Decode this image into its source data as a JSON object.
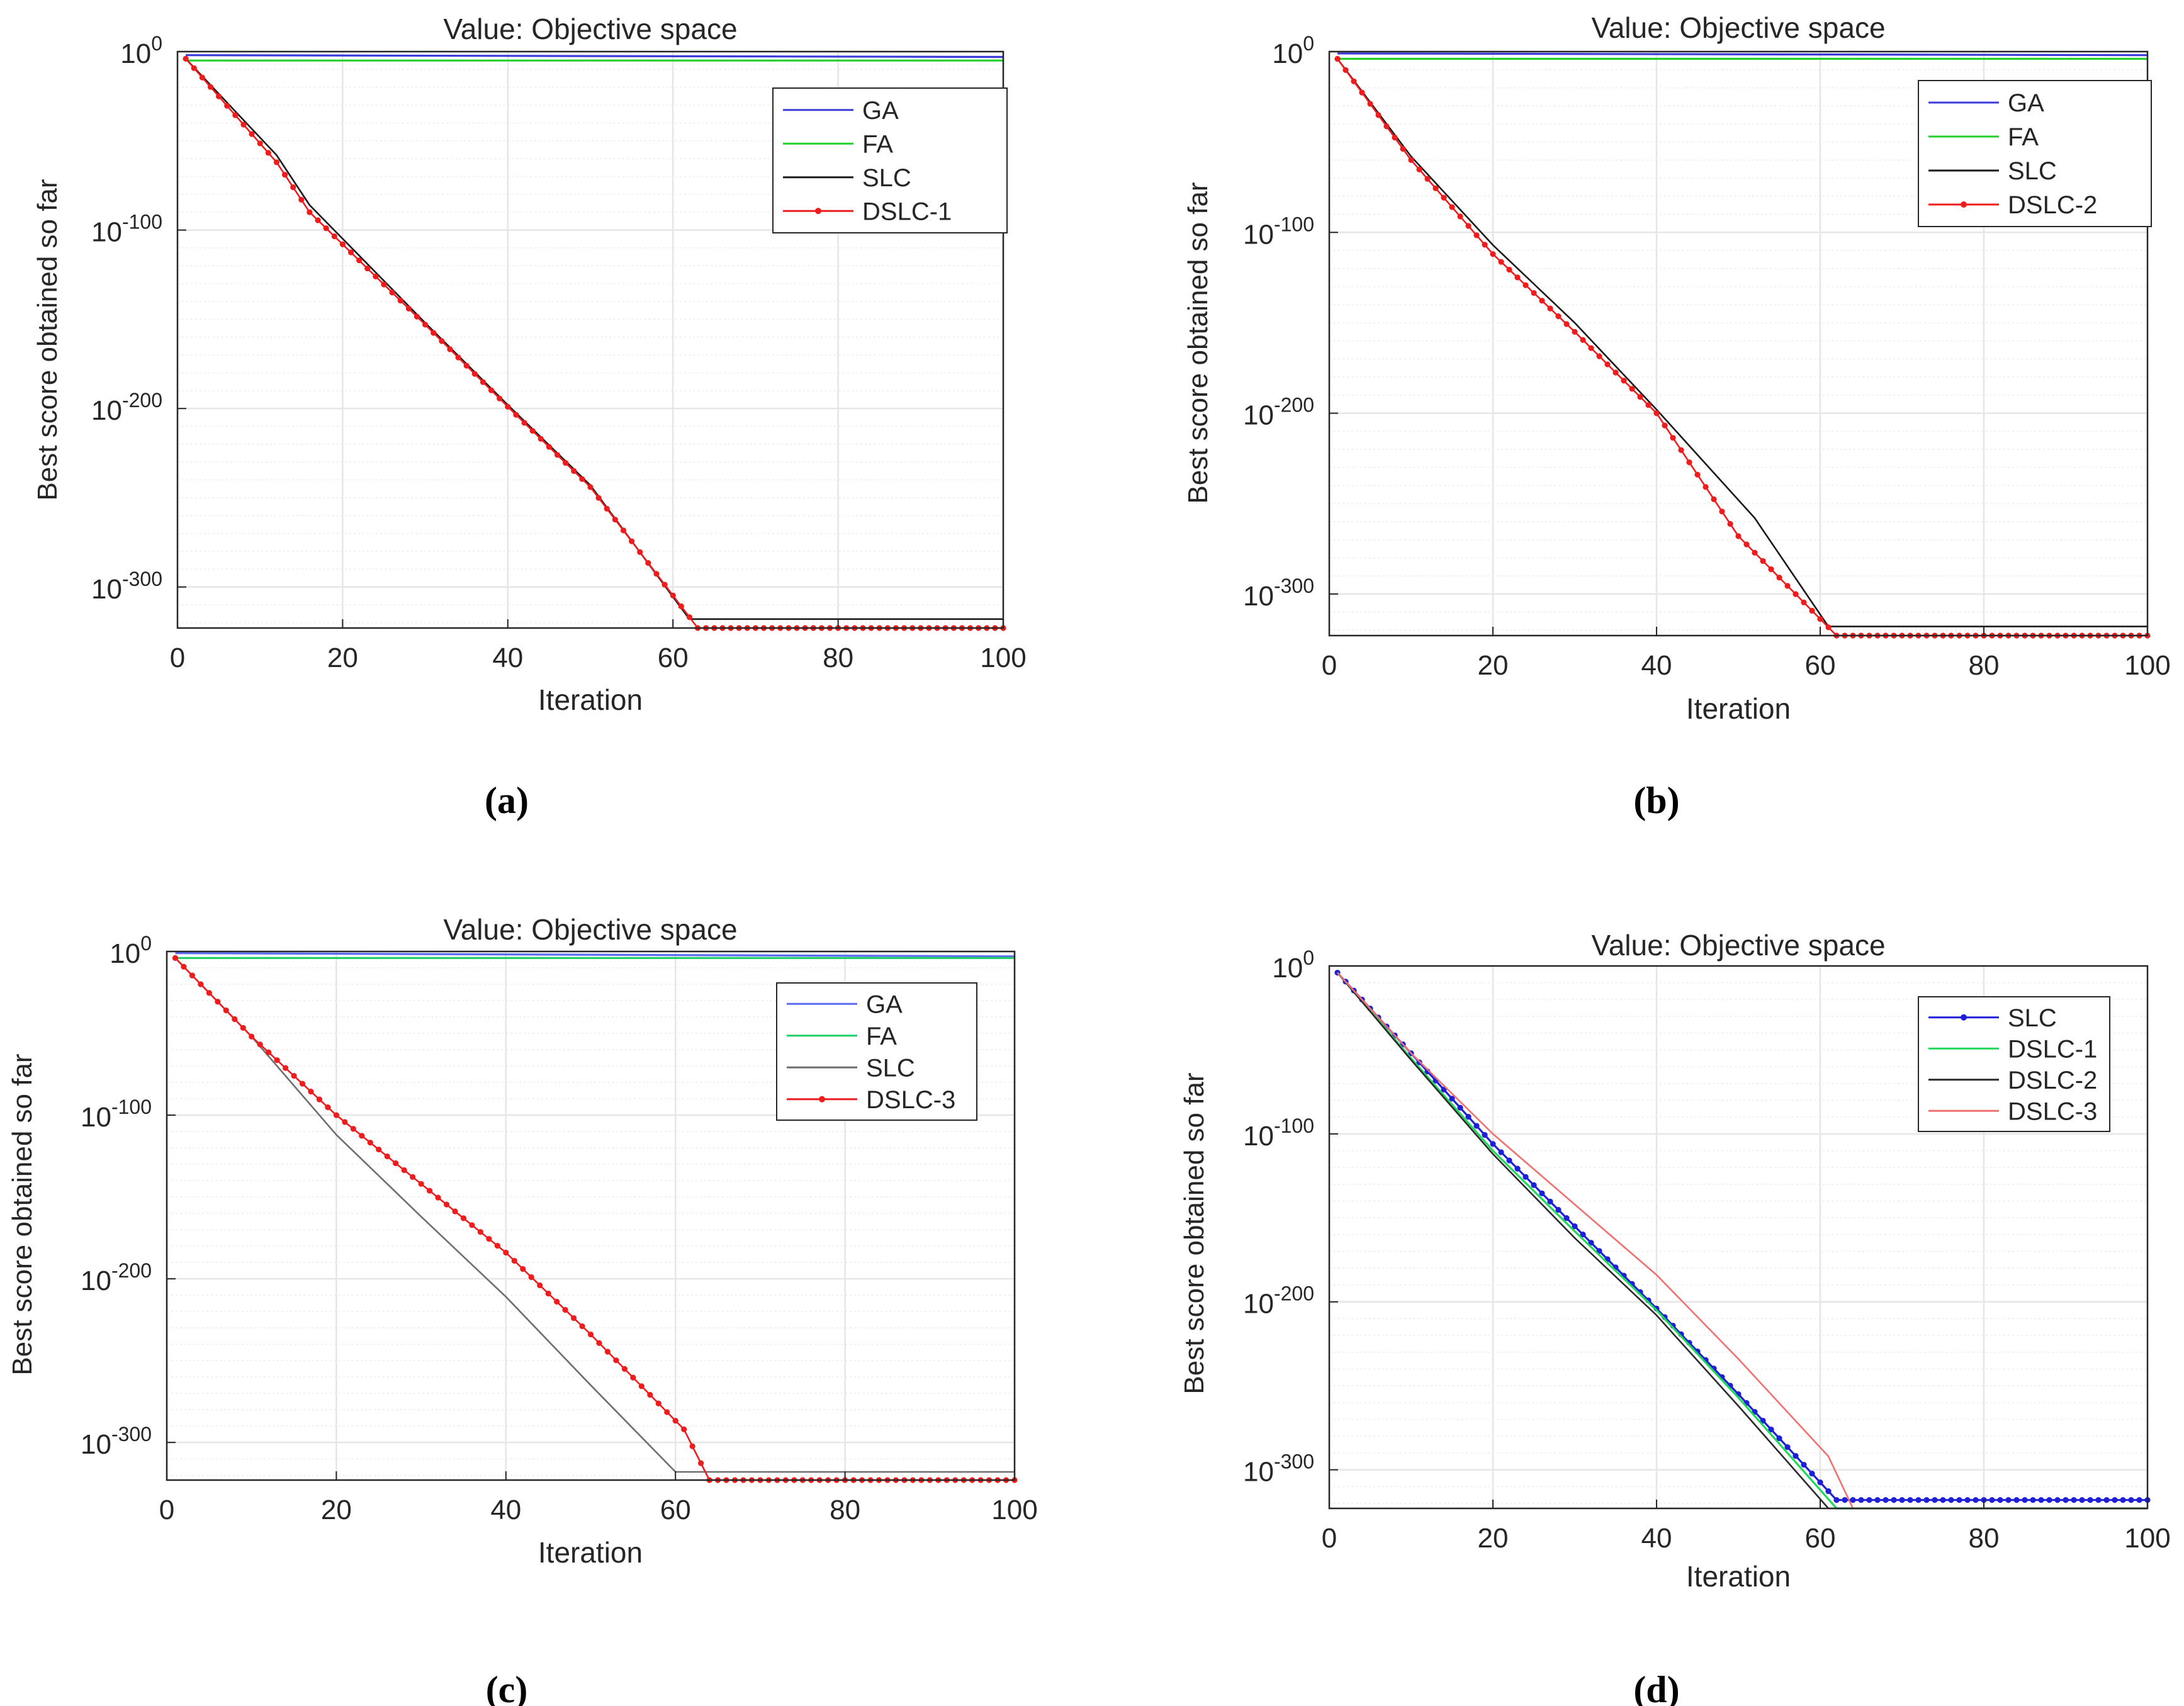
{
  "chart_data": [
    {
      "id": "a",
      "type": "line",
      "caption": "(a)",
      "title": "Value: Objective space",
      "xlabel": "Iteration",
      "ylabel": "Best score obtained so far",
      "yscale": "log10",
      "xlim": [
        0,
        100
      ],
      "ylim_exponent": [
        -323,
        0
      ],
      "xticks": [
        "0",
        "20",
        "40",
        "60",
        "80",
        "100"
      ],
      "yticks": [
        {
          "base": "10",
          "exp": "0"
        },
        {
          "base": "10",
          "exp": "-100"
        },
        {
          "base": "10",
          "exp": "-200"
        },
        {
          "base": "10",
          "exp": "-300"
        }
      ],
      "ytick_values": [
        0,
        -100,
        -200,
        -300
      ],
      "grid": true,
      "legend_position": "top-right",
      "series": [
        {
          "name": "GA",
          "color": "#3b3bd9",
          "marker": "none",
          "log10_y_at_x": [
            [
              1,
              -2
            ],
            [
              100,
              -3
            ]
          ]
        },
        {
          "name": "FA",
          "color": "#22d02a",
          "marker": "none",
          "log10_y_at_x": [
            [
              1,
              -5
            ],
            [
              100,
              -5
            ]
          ]
        },
        {
          "name": "SLC",
          "color": "#1a1a1a",
          "marker": "none",
          "log10_y_at_x": [
            [
              1,
              -4
            ],
            [
              12,
              -58
            ],
            [
              16,
              -86
            ],
            [
              30,
              -152
            ],
            [
              40,
              -198
            ],
            [
              50,
              -243
            ],
            [
              62,
              -318
            ],
            [
              100,
              -318
            ]
          ]
        },
        {
          "name": "DSLC-1",
          "color": "#ee1c1c",
          "marker": "dot",
          "log10_y_at_x": [
            [
              1,
              -4
            ],
            [
              12,
              -62
            ],
            [
              16,
              -90
            ],
            [
              30,
              -153
            ],
            [
              40,
              -199
            ],
            [
              50,
              -244
            ],
            [
              63,
              -323
            ],
            [
              100,
              -323
            ]
          ]
        }
      ]
    },
    {
      "id": "b",
      "type": "line",
      "caption": "(b)",
      "title": "Value: Objective space",
      "xlabel": "Iteration",
      "ylabel": "Best score obtained so far",
      "yscale": "log10",
      "xlim": [
        0,
        100
      ],
      "ylim_exponent": [
        -323,
        0
      ],
      "xticks": [
        "0",
        "20",
        "40",
        "60",
        "80",
        "100"
      ],
      "yticks": [
        {
          "base": "10",
          "exp": "0"
        },
        {
          "base": "10",
          "exp": "-100"
        },
        {
          "base": "10",
          "exp": "-200"
        },
        {
          "base": "10",
          "exp": "-300"
        }
      ],
      "ytick_values": [
        0,
        -100,
        -200,
        -300
      ],
      "grid": true,
      "legend_position": "top-right",
      "series": [
        {
          "name": "GA",
          "color": "#3b3bd9",
          "marker": "none",
          "log10_y_at_x": [
            [
              1,
              -1
            ],
            [
              100,
              -2
            ]
          ]
        },
        {
          "name": "FA",
          "color": "#22d02a",
          "marker": "none",
          "log10_y_at_x": [
            [
              1,
              -4
            ],
            [
              100,
              -4
            ]
          ]
        },
        {
          "name": "SLC",
          "color": "#1a1a1a",
          "marker": "none",
          "log10_y_at_x": [
            [
              1,
              -4
            ],
            [
              10,
              -58
            ],
            [
              20,
              -107
            ],
            [
              30,
              -150
            ],
            [
              40,
              -198
            ],
            [
              52,
              -258
            ],
            [
              61,
              -318
            ],
            [
              100,
              -318
            ]
          ]
        },
        {
          "name": "DSLC-2",
          "color": "#ee1c1c",
          "marker": "dot",
          "log10_y_at_x": [
            [
              1,
              -4
            ],
            [
              10,
              -60
            ],
            [
              20,
              -112
            ],
            [
              30,
              -155
            ],
            [
              40,
              -200
            ],
            [
              50,
              -268
            ],
            [
              62,
              -323
            ],
            [
              100,
              -323
            ]
          ]
        }
      ]
    },
    {
      "id": "c",
      "type": "line",
      "caption": "(c)",
      "title": "Value: Objective space",
      "xlabel": "Iteration",
      "ylabel": "Best score obtained so far",
      "yscale": "log10",
      "xlim": [
        0,
        100
      ],
      "ylim_exponent": [
        -323,
        0
      ],
      "xticks": [
        "0",
        "20",
        "40",
        "60",
        "80",
        "100"
      ],
      "yticks": [
        {
          "base": "10",
          "exp": "0"
        },
        {
          "base": "10",
          "exp": "-100"
        },
        {
          "base": "10",
          "exp": "-200"
        },
        {
          "base": "10",
          "exp": "-300"
        }
      ],
      "ytick_values": [
        0,
        -100,
        -200,
        -300
      ],
      "grid": true,
      "legend_position": "top-right",
      "series": [
        {
          "name": "GA",
          "color": "#5b6bf2",
          "marker": "none",
          "log10_y_at_x": [
            [
              1,
              -1
            ],
            [
              100,
              -3
            ]
          ]
        },
        {
          "name": "FA",
          "color": "#22d06a",
          "marker": "none",
          "log10_y_at_x": [
            [
              1,
              -4
            ],
            [
              100,
              -4
            ]
          ]
        },
        {
          "name": "SLC",
          "color": "#6e6e6e",
          "marker": "none",
          "log10_y_at_x": [
            [
              1,
              -4
            ],
            [
              10,
              -52
            ],
            [
              20,
              -112
            ],
            [
              30,
              -162
            ],
            [
              40,
              -211
            ],
            [
              50,
              -265
            ],
            [
              60,
              -318
            ],
            [
              100,
              -318
            ]
          ]
        },
        {
          "name": "DSLC-3",
          "color": "#ee1c1c",
          "marker": "dot",
          "log10_y_at_x": [
            [
              1,
              -4
            ],
            [
              10,
              -52
            ],
            [
              20,
              -100
            ],
            [
              30,
              -142
            ],
            [
              40,
              -184
            ],
            [
              50,
              -234
            ],
            [
              61,
              -292
            ],
            [
              64,
              -323
            ],
            [
              100,
              -323
            ]
          ]
        }
      ]
    },
    {
      "id": "d",
      "type": "line",
      "caption": "(d)",
      "title": "Value: Objective space",
      "xlabel": "Iteration",
      "ylabel": "Best score obtained so far",
      "yscale": "log10",
      "xlim": [
        0,
        100
      ],
      "ylim_exponent": [
        -323,
        0
      ],
      "xticks": [
        "0",
        "20",
        "40",
        "60",
        "80",
        "100"
      ],
      "yticks": [
        {
          "base": "10",
          "exp": "0"
        },
        {
          "base": "10",
          "exp": "-100"
        },
        {
          "base": "10",
          "exp": "-200"
        },
        {
          "base": "10",
          "exp": "-300"
        }
      ],
      "ytick_values": [
        0,
        -100,
        -200,
        -300
      ],
      "grid": true,
      "legend_position": "top-right",
      "series": [
        {
          "name": "SLC",
          "color": "#1f1fd8",
          "marker": "dot",
          "log10_y_at_x": [
            [
              1,
              -4
            ],
            [
              10,
              -52
            ],
            [
              20,
              -106
            ],
            [
              30,
              -155
            ],
            [
              40,
              -204
            ],
            [
              50,
              -255
            ],
            [
              62,
              -318
            ],
            [
              100,
              -318
            ]
          ]
        },
        {
          "name": "DSLC-1",
          "color": "#1ed85a",
          "marker": "none",
          "log10_y_at_x": [
            [
              1,
              -4
            ],
            [
              10,
              -55
            ],
            [
              20,
              -110
            ],
            [
              30,
              -158
            ],
            [
              40,
              -205
            ],
            [
              50,
              -257
            ],
            [
              62,
              -323
            ],
            [
              100,
              -323
            ]
          ]
        },
        {
          "name": "DSLC-2",
          "color": "#2a2a2a",
          "marker": "none",
          "log10_y_at_x": [
            [
              1,
              -4
            ],
            [
              10,
              -56
            ],
            [
              20,
              -112
            ],
            [
              30,
              -162
            ],
            [
              40,
              -208
            ],
            [
              50,
              -262
            ],
            [
              61,
              -323
            ],
            [
              100,
              -323
            ]
          ]
        },
        {
          "name": "DSLC-3",
          "color": "#f07070",
          "marker": "none",
          "log10_y_at_x": [
            [
              1,
              -4
            ],
            [
              10,
              -52
            ],
            [
              20,
              -100
            ],
            [
              30,
              -142
            ],
            [
              40,
              -184
            ],
            [
              50,
              -234
            ],
            [
              61,
              -292
            ],
            [
              64,
              -323
            ],
            [
              100,
              -323
            ]
          ]
        }
      ]
    }
  ]
}
